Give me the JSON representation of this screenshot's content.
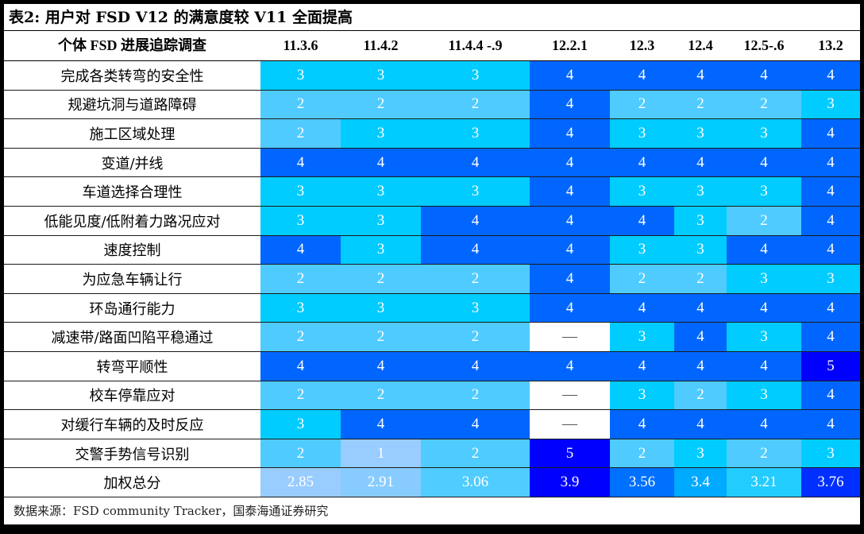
{
  "title": "表2: 用户对 FSD V12 的满意度较 V11 全面提高",
  "header": {
    "label": "个体  FSD  进展追踪调查",
    "columns": [
      "11.3.6",
      "11.4.2",
      "11.4.4 -.9",
      "12.2.1",
      "12.3",
      "12.4",
      "12.5-.6",
      "13.2"
    ]
  },
  "colors": {
    "1": "#99ccff",
    "2": "#4fcbff",
    "3": "#00ccff",
    "4": "#0066ff",
    "5": "#0000ff",
    "empty": "#ffffff",
    "total": [
      "#99ccff",
      "#88ccff",
      "#50ccff",
      "#0000ff",
      "#0070ff",
      "#00aaff",
      "#22ccff",
      "#0030ff"
    ]
  },
  "rows": [
    {
      "label": "完成各类转弯的安全性",
      "values": [
        "3",
        "3",
        "3",
        "4",
        "4",
        "4",
        "4",
        "4"
      ]
    },
    {
      "label": "规避坑洞与道路障碍",
      "values": [
        "2",
        "2",
        "2",
        "4",
        "2",
        "2",
        "2",
        "3"
      ]
    },
    {
      "label": "施工区域处理",
      "values": [
        "2",
        "3",
        "3",
        "4",
        "3",
        "3",
        "3",
        "4"
      ]
    },
    {
      "label": "变道/并线",
      "values": [
        "4",
        "4",
        "4",
        "4",
        "4",
        "4",
        "4",
        "4"
      ]
    },
    {
      "label": "车道选择合理性",
      "values": [
        "3",
        "3",
        "3",
        "4",
        "3",
        "3",
        "3",
        "4"
      ]
    },
    {
      "label": "低能见度/低附着力路况应对",
      "values": [
        "3",
        "3",
        "4",
        "4",
        "4",
        "3",
        "2",
        "4"
      ]
    },
    {
      "label": "速度控制",
      "values": [
        "4",
        "3",
        "4",
        "4",
        "3",
        "3",
        "4",
        "4"
      ]
    },
    {
      "label": "为应急车辆让行",
      "values": [
        "2",
        "2",
        "2",
        "4",
        "2",
        "2",
        "3",
        "3"
      ]
    },
    {
      "label": "环岛通行能力",
      "values": [
        "3",
        "3",
        "3",
        "4",
        "4",
        "4",
        "4",
        "4"
      ]
    },
    {
      "label": "减速带/路面凹陷平稳通过",
      "values": [
        "2",
        "2",
        "2",
        "—",
        "3",
        "4",
        "3",
        "4"
      ]
    },
    {
      "label": "转弯平顺性",
      "values": [
        "4",
        "4",
        "4",
        "4",
        "4",
        "4",
        "4",
        "5"
      ]
    },
    {
      "label": "校车停靠应对",
      "values": [
        "2",
        "2",
        "2",
        "—",
        "3",
        "2",
        "3",
        "4"
      ]
    },
    {
      "label": "对缓行车辆的及时反应",
      "values": [
        "3",
        "4",
        "4",
        "—",
        "4",
        "4",
        "4",
        "4"
      ]
    },
    {
      "label": "交警手势信号识别",
      "values": [
        "2",
        "1",
        "2",
        "5",
        "2",
        "3",
        "2",
        "3"
      ]
    },
    {
      "label": "加权总分",
      "values": [
        "2.85",
        "2.91",
        "3.06",
        "3.9",
        "3.56",
        "3.4",
        "3.21",
        "3.76"
      ],
      "is_total": true
    }
  ],
  "footer": "数据来源：FSD community Tracker，国泰海通证券研究"
}
